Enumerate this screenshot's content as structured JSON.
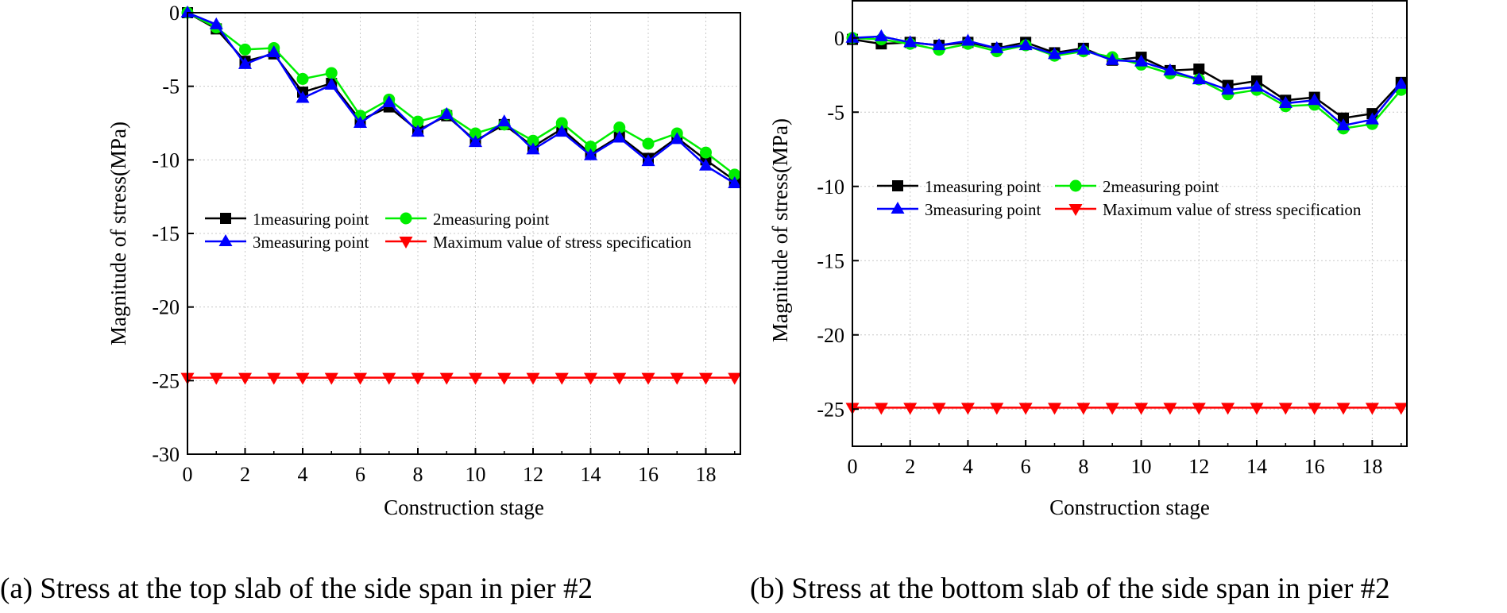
{
  "captions": {
    "a": "(a) Stress at the top slab of the side span in pier #2",
    "b": "(b) Stress at the bottom slab of the side span in pier #2"
  },
  "chart_data": [
    {
      "id": "a",
      "type": "line",
      "title": "",
      "xlabel": "Construction stage",
      "ylabel": "Magnitude of stress(MPa)",
      "xlim": [
        0,
        19.2
      ],
      "ylim": [
        -30,
        0
      ],
      "xticks": [
        0,
        2,
        4,
        6,
        8,
        10,
        12,
        14,
        16,
        18
      ],
      "yticks": [
        0,
        -5,
        -10,
        -15,
        -20,
        -25,
        -30
      ],
      "x": [
        0,
        1,
        2,
        3,
        4,
        5,
        6,
        7,
        8,
        9,
        10,
        11,
        12,
        13,
        14,
        15,
        16,
        17,
        18,
        19
      ],
      "grid": true,
      "legend_position": "center-right",
      "series": [
        {
          "name": "1measuring point",
          "color": "#000000",
          "marker": "square",
          "values": [
            0,
            -1.1,
            -3.3,
            -2.8,
            -5.4,
            -4.8,
            -7.3,
            -6.4,
            -8.0,
            -7.0,
            -8.7,
            -7.6,
            -9.1,
            -7.9,
            -9.6,
            -8.4,
            -9.9,
            -8.5,
            -10.0,
            -11.4
          ]
        },
        {
          "name": "2measuring point",
          "color": "#00ee00",
          "marker": "circle",
          "values": [
            0,
            -1.0,
            -2.5,
            -2.4,
            -4.5,
            -4.1,
            -7.0,
            -5.9,
            -7.4,
            -6.9,
            -8.2,
            -7.6,
            -8.7,
            -7.5,
            -9.1,
            -7.8,
            -8.9,
            -8.2,
            -9.5,
            -11.0
          ]
        },
        {
          "name": "3measuring point",
          "color": "#0000ff",
          "marker": "triangle-up",
          "values": [
            0,
            -0.8,
            -3.5,
            -2.7,
            -5.8,
            -4.9,
            -7.5,
            -6.1,
            -8.1,
            -6.9,
            -8.8,
            -7.4,
            -9.3,
            -8.1,
            -9.7,
            -8.5,
            -10.1,
            -8.6,
            -10.4,
            -11.6
          ]
        },
        {
          "name": "Maximum value of stress specification",
          "color": "#ff0000",
          "marker": "triangle-down",
          "values": [
            -24.8,
            -24.8,
            -24.8,
            -24.8,
            -24.8,
            -24.8,
            -24.8,
            -24.8,
            -24.8,
            -24.8,
            -24.8,
            -24.8,
            -24.8,
            -24.8,
            -24.8,
            -24.8,
            -24.8,
            -24.8,
            -24.8,
            -24.8
          ]
        }
      ]
    },
    {
      "id": "b",
      "type": "line",
      "title": "",
      "xlabel": "Construction stage",
      "ylabel": "Magnitude of stress(MPa)",
      "xlim": [
        0,
        19.2
      ],
      "ylim": [
        -27.5,
        2.5
      ],
      "xticks": [
        0,
        2,
        4,
        6,
        8,
        10,
        12,
        14,
        16,
        18
      ],
      "yticks": [
        0,
        -5,
        -10,
        -15,
        -20,
        -25
      ],
      "x": [
        0,
        1,
        2,
        3,
        4,
        5,
        6,
        7,
        8,
        9,
        10,
        11,
        12,
        13,
        14,
        15,
        16,
        17,
        18,
        19
      ],
      "grid": true,
      "legend_position": "center-right",
      "series": [
        {
          "name": "1measuring point",
          "color": "#000000",
          "marker": "square",
          "values": [
            -0.1,
            -0.4,
            -0.3,
            -0.5,
            -0.3,
            -0.7,
            -0.3,
            -1.0,
            -0.7,
            -1.5,
            -1.3,
            -2.2,
            -2.1,
            -3.2,
            -2.9,
            -4.2,
            -4.0,
            -5.4,
            -5.1,
            -3.0
          ]
        },
        {
          "name": "2measuring point",
          "color": "#00ee00",
          "marker": "circle",
          "values": [
            0,
            -0.1,
            -0.4,
            -0.8,
            -0.4,
            -0.9,
            -0.5,
            -1.2,
            -0.9,
            -1.3,
            -1.8,
            -2.4,
            -2.8,
            -3.8,
            -3.5,
            -4.6,
            -4.5,
            -6.1,
            -5.8,
            -3.5
          ]
        },
        {
          "name": "3measuring point",
          "color": "#0000ff",
          "marker": "triangle-up",
          "values": [
            0,
            0.1,
            -0.3,
            -0.5,
            -0.2,
            -0.7,
            -0.5,
            -1.1,
            -0.8,
            -1.5,
            -1.6,
            -2.2,
            -2.8,
            -3.5,
            -3.3,
            -4.4,
            -4.2,
            -5.9,
            -5.5,
            -3.1
          ]
        },
        {
          "name": "Maximum value of stress specification",
          "color": "#ff0000",
          "marker": "triangle-down",
          "values": [
            -24.9,
            -24.9,
            -24.9,
            -24.9,
            -24.9,
            -24.9,
            -24.9,
            -24.9,
            -24.9,
            -24.9,
            -24.9,
            -24.9,
            -24.9,
            -24.9,
            -24.9,
            -24.9,
            -24.9,
            -24.9,
            -24.9,
            -24.9
          ]
        }
      ]
    }
  ]
}
